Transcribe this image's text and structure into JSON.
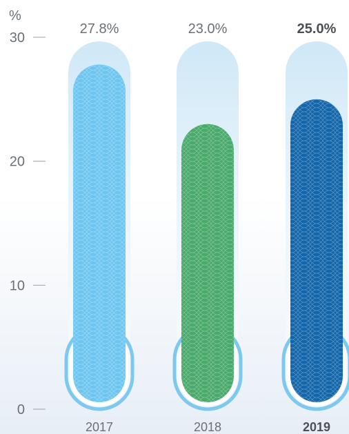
{
  "chart_data": {
    "type": "bar",
    "unit": "%",
    "categories": [
      "2017",
      "2018",
      "2019"
    ],
    "values": [
      27.8,
      23.0,
      25.0
    ],
    "value_labels": [
      "27.8%",
      "23.0%",
      "25.0%"
    ],
    "highlight_index": 2,
    "ylim": [
      0,
      30
    ],
    "yticks": [
      0,
      10,
      20,
      30
    ],
    "grid": false,
    "colors": [
      "#6ec6f0",
      "#4aaa6b",
      "#1466aa"
    ],
    "track_color": "#d3eaf8",
    "outline_color": "#7cc8ee"
  }
}
